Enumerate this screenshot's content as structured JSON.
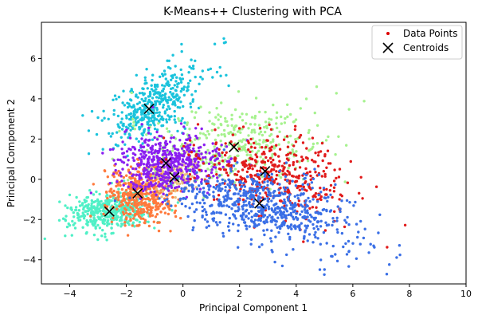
{
  "chart_data": {
    "type": "scatter",
    "title": "K-Means++ Clustering with PCA",
    "xlabel": "Principal Component 1",
    "ylabel": "Principal Component 2",
    "xlim": [
      -5,
      10
    ],
    "ylim": [
      -5.2,
      7.8
    ],
    "x_ticks": [
      -4,
      -2,
      0,
      2,
      4,
      6,
      8,
      10
    ],
    "y_ticks": [
      -4,
      -2,
      0,
      2,
      4,
      6
    ],
    "grid": false,
    "legend": {
      "placement": "top-right",
      "entries": [
        {
          "label": "Data Points",
          "marker": "dot",
          "color": "#dd0000"
        },
        {
          "label": "Centroids",
          "marker": "x",
          "color": "#000000"
        }
      ]
    },
    "clusters": [
      {
        "color": "#1ac3dc",
        "centroid": [
          -1.2,
          3.5
        ]
      },
      {
        "color": "#a6f28e",
        "centroid": [
          1.8,
          1.6
        ]
      },
      {
        "color": "#e11b1b",
        "centroid": [
          2.9,
          0.4
        ]
      },
      {
        "color": "#8a1ff0",
        "centroid": [
          -0.6,
          0.8
        ]
      },
      {
        "color": "#e8c07d",
        "centroid": [
          -0.3,
          0.1
        ]
      },
      {
        "color": "#ff7a3d",
        "centroid": [
          -1.6,
          -0.7
        ]
      },
      {
        "color": "#4ff0c6",
        "centroid": [
          -2.6,
          -1.6
        ]
      },
      {
        "color": "#3a6fe6",
        "centroid": [
          2.7,
          -1.2
        ]
      }
    ]
  }
}
